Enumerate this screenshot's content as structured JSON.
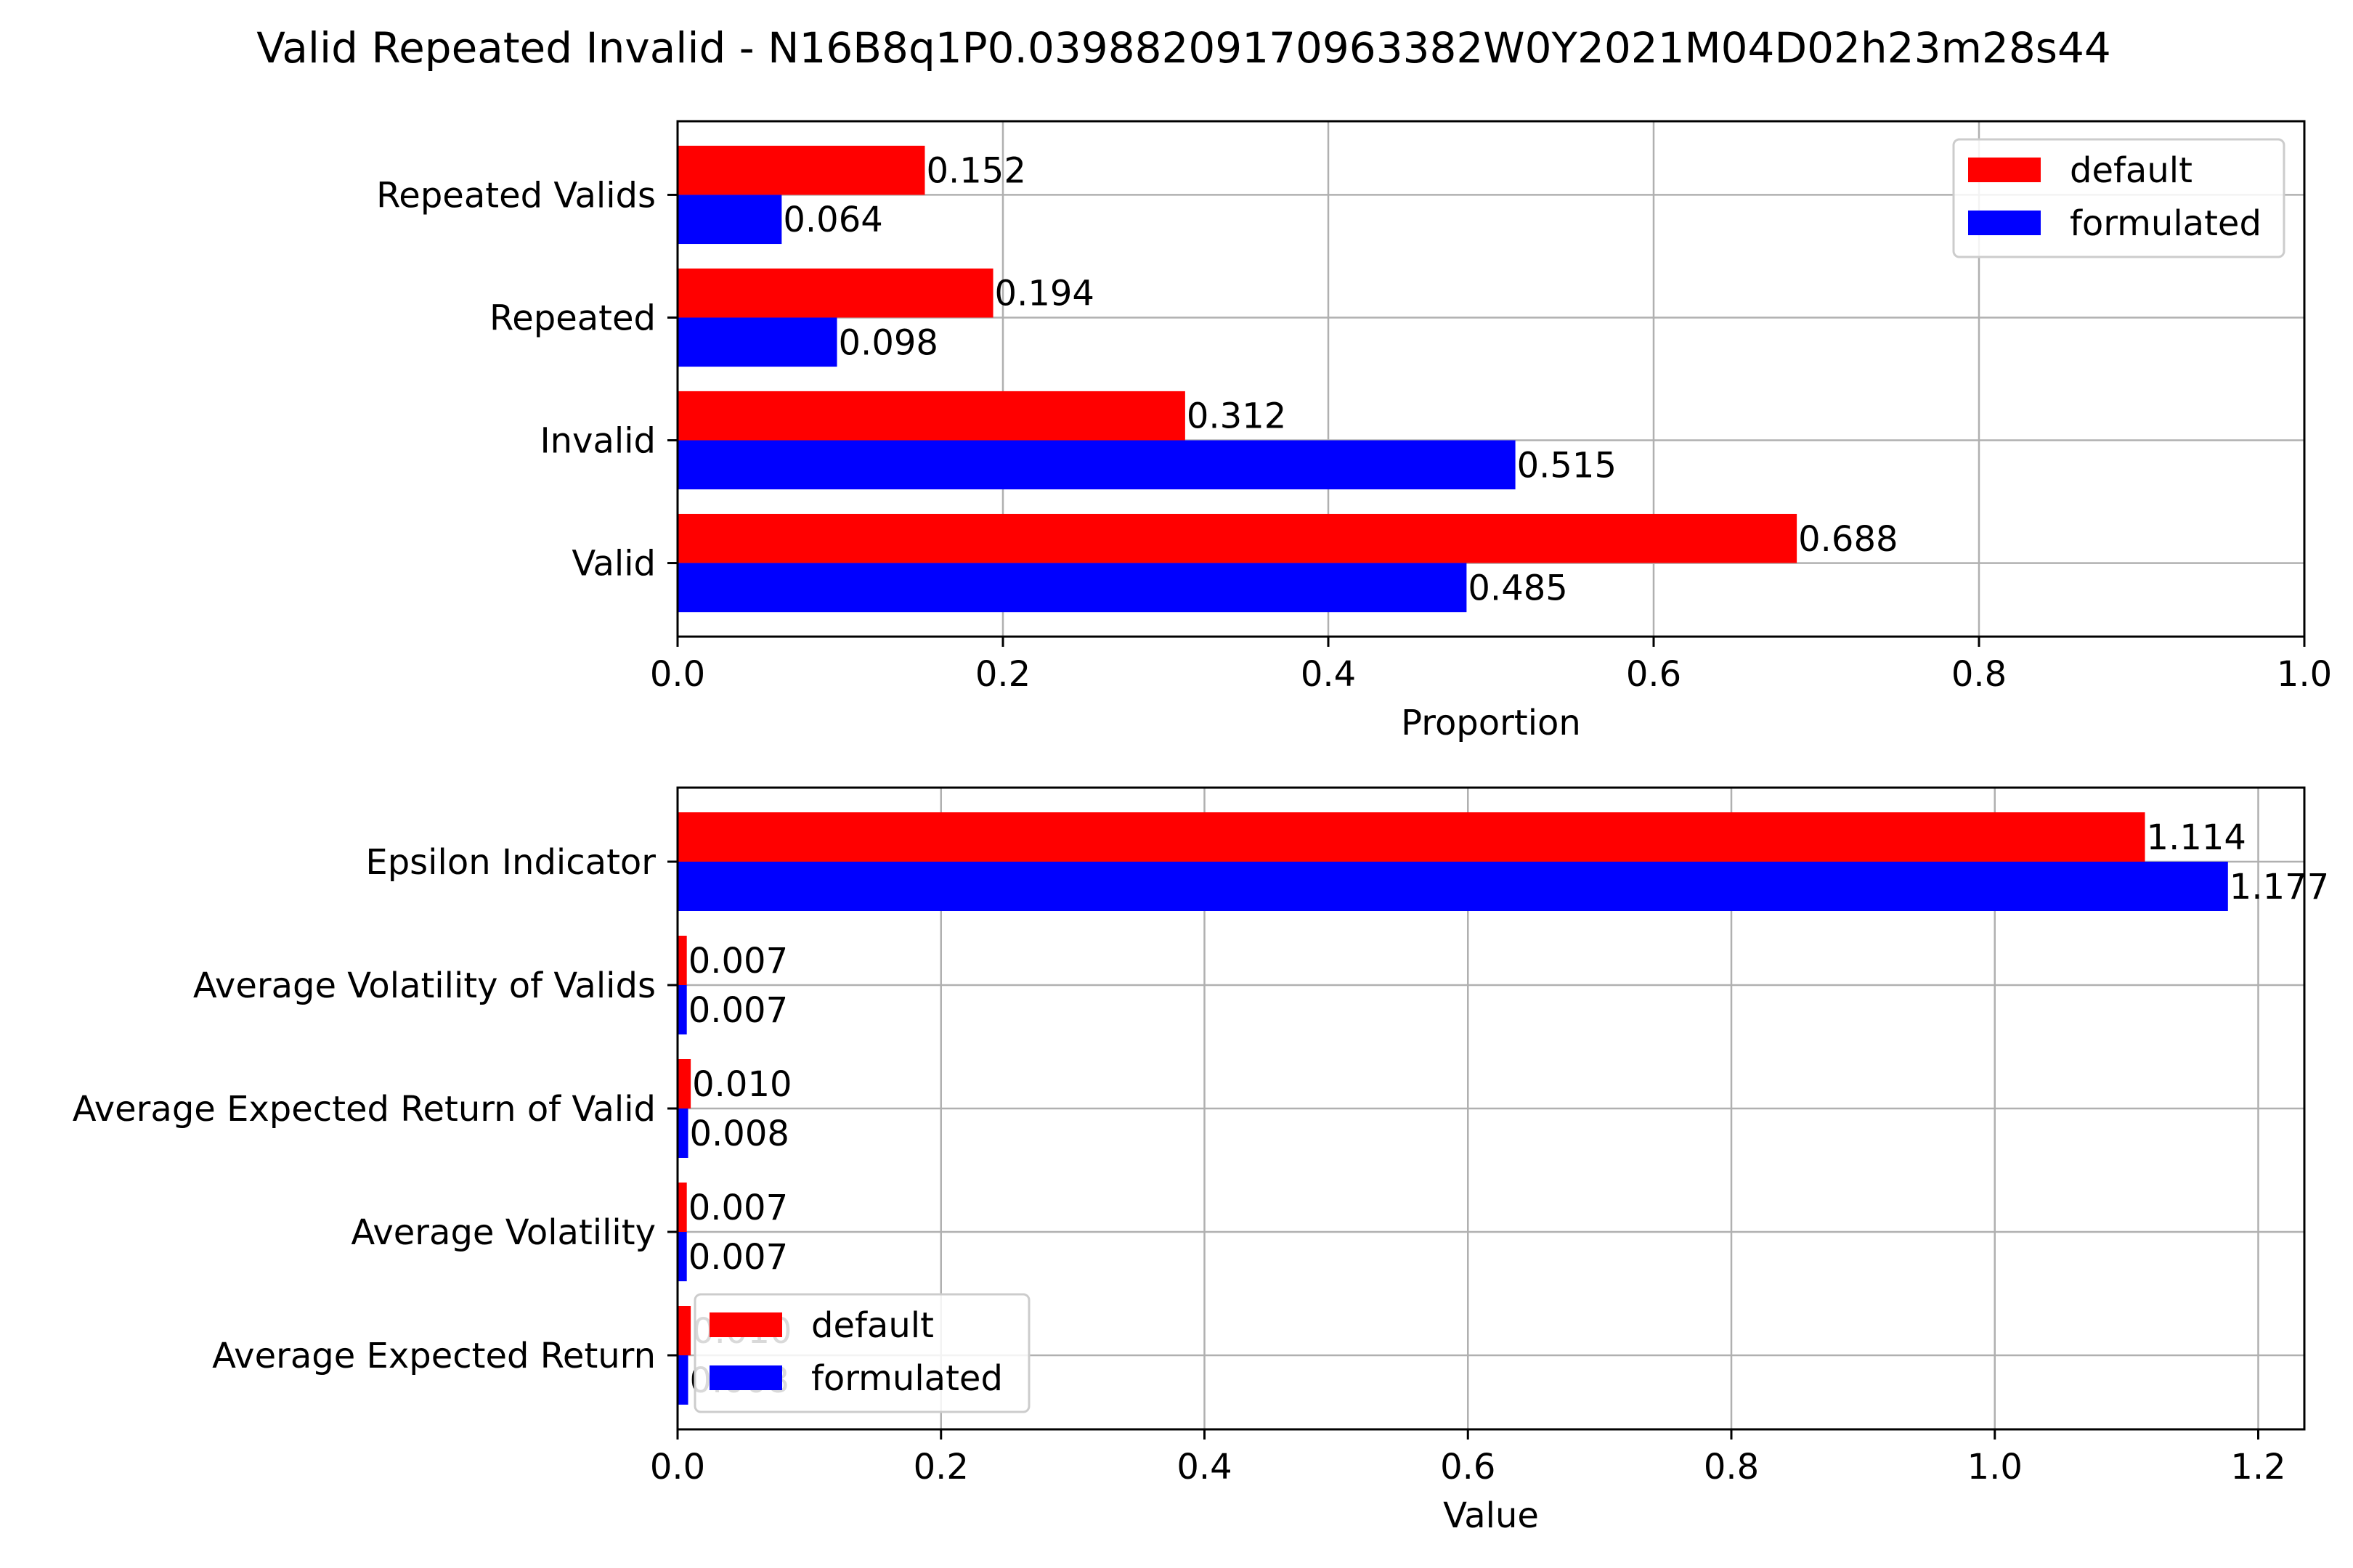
{
  "figure": {
    "title": "Valid Repeated Invalid - N16B8q1P0.03988209170963382W0Y2021M04D02h23m28s44",
    "background": "#ffffff",
    "grid_color": "#b0b0b0"
  },
  "chart_data": [
    {
      "type": "bar",
      "orientation": "horizontal",
      "categories": [
        "Valid",
        "Invalid",
        "Repeated",
        "Repeated Valids"
      ],
      "series": [
        {
          "name": "default",
          "color": "#ff0000",
          "values": [
            0.688,
            0.312,
            0.194,
            0.152
          ],
          "labels": [
            "0.688",
            "0.312",
            "0.194",
            "0.152"
          ]
        },
        {
          "name": "formulated",
          "color": "#0000ff",
          "values": [
            0.485,
            0.515,
            0.098,
            0.064
          ],
          "labels": [
            "0.485",
            "0.515",
            "0.098",
            "0.064"
          ]
        }
      ],
      "xlabel": "Proportion",
      "xlim": [
        0,
        1.0
      ],
      "xticks": [
        "0.0",
        "0.2",
        "0.4",
        "0.6",
        "0.8",
        "1.0"
      ],
      "grid": true,
      "legend": "top-right"
    },
    {
      "type": "bar",
      "orientation": "horizontal",
      "categories": [
        "Average Expected Return",
        "Average Volatility",
        "Average Expected Return of Valid",
        "Average Volatility of Valids",
        "Epsilon Indicator"
      ],
      "series": [
        {
          "name": "default",
          "color": "#ff0000",
          "values": [
            0.01,
            0.007,
            0.01,
            0.007,
            1.114
          ],
          "labels": [
            "0.010",
            "0.007",
            "0.010",
            "0.007",
            "1.114"
          ]
        },
        {
          "name": "formulated",
          "color": "#0000ff",
          "values": [
            0.008,
            0.007,
            0.008,
            0.007,
            1.177
          ],
          "labels": [
            "0.008",
            "0.007",
            "0.008",
            "0.007",
            "1.177"
          ]
        }
      ],
      "xlabel": "Value",
      "xlim": [
        0,
        1.235
      ],
      "xticks": [
        "0.0",
        "0.2",
        "0.4",
        "0.6",
        "0.8",
        "1.0",
        "1.2"
      ],
      "grid": true,
      "legend": "lower-left"
    }
  ]
}
